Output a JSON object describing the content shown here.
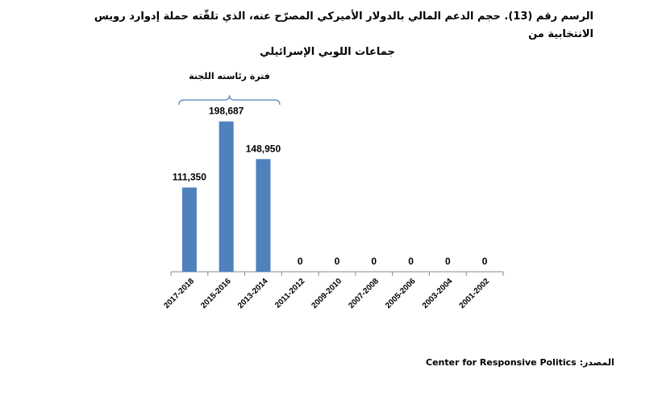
{
  "title_line1": "الرسم رقم (13). حجم الدعم المالي بالدولار الأميركي المصرّح عنه، الذي تلقّته حملة إدوارد رويس الانتخابية من",
  "title_line2": "جماعات اللوبي الإسرائيلي",
  "bracket_label": "فترة رئاسته اللجنة",
  "source_label": "المصدر:",
  "source_text": "Center for Responsive Politics",
  "colors": {
    "bar": "#4f81bd",
    "axis": "#888888",
    "bracket": "#4f81bd"
  },
  "chart_data": {
    "type": "bar",
    "categories": [
      "2017-2018",
      "2015-2016",
      "2013-2014",
      "2011-2012",
      "2009-2010",
      "2007-2008",
      "2005-2006",
      "2003-2004",
      "2001-2002"
    ],
    "values": [
      111350,
      198687,
      148950,
      0,
      0,
      0,
      0,
      0,
      0
    ],
    "data_labels": [
      "111,350",
      "198,687",
      "148,950",
      "0",
      "0",
      "0",
      "0",
      "0",
      "0"
    ],
    "ylim": [
      0,
      210000
    ],
    "grid": false,
    "legend": "none"
  }
}
